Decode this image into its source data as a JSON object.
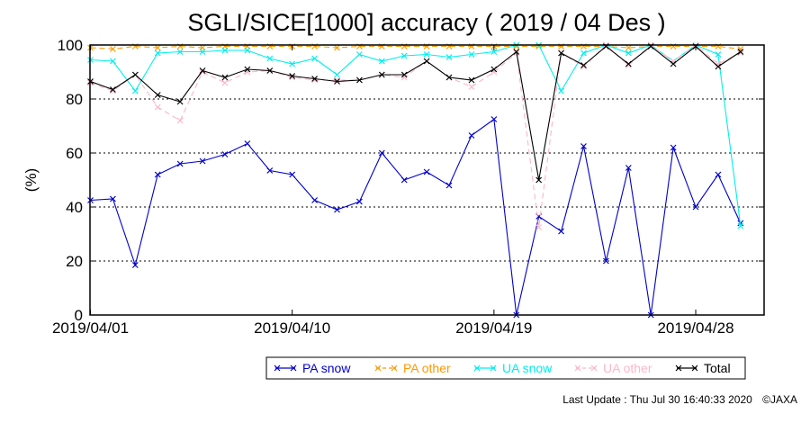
{
  "chart_data": {
    "type": "line",
    "title": "SGLI/SICE[1000] accuracy ( 2019 / 04 Des )",
    "ylabel": "(%)",
    "xlabel": "",
    "ylim": [
      0,
      100
    ],
    "xlim": [
      1,
      31
    ],
    "yticks": [
      0,
      20,
      40,
      60,
      80,
      100
    ],
    "xticks": [
      {
        "x": 1,
        "label": "2019/04/01"
      },
      {
        "x": 10,
        "label": "2019/04/10"
      },
      {
        "x": 19,
        "label": "2019/04/19"
      },
      {
        "x": 28,
        "label": "2019/04/28"
      }
    ],
    "grid": "horizontal dotted",
    "legend_position": "bottom",
    "series": [
      {
        "name": "PA snow",
        "color": "#0000cc",
        "dash": "",
        "x": [
          1,
          2,
          3,
          4,
          5,
          6,
          7,
          8,
          9,
          10,
          11,
          12,
          13,
          14,
          15,
          16,
          17,
          18,
          19,
          20,
          21,
          22,
          23,
          24,
          25,
          26,
          27,
          28,
          29,
          30
        ],
        "y": [
          42.5,
          43,
          18.5,
          52,
          56,
          57,
          59.5,
          63.5,
          53.5,
          52,
          42.5,
          39,
          42,
          60,
          50,
          53,
          48,
          66.5,
          72.5,
          0,
          36.5,
          31,
          62.5,
          20,
          54.5,
          0,
          62,
          40,
          52,
          34
        ]
      },
      {
        "name": "PA other",
        "color": "#ff9900",
        "dash": "6,4",
        "x": [
          1,
          2,
          3,
          4,
          5,
          6,
          7,
          8,
          9,
          10,
          11,
          12,
          13,
          14,
          15,
          16,
          17,
          18,
          19,
          20,
          21,
          22,
          23,
          24,
          25,
          26,
          27,
          28,
          29,
          30
        ],
        "y": [
          99,
          98.5,
          99.5,
          99,
          99.5,
          99,
          99.5,
          99.5,
          99.5,
          99.5,
          99.5,
          99,
          99.5,
          99.5,
          99.5,
          99.5,
          99.5,
          99.5,
          99.5,
          99.5,
          99.5,
          99.5,
          99.5,
          99.5,
          99,
          99.5,
          99.5,
          99.5,
          99.5,
          98.5
        ]
      },
      {
        "name": "UA snow",
        "color": "#00eeee",
        "dash": "",
        "x": [
          1,
          2,
          3,
          4,
          5,
          6,
          7,
          8,
          9,
          10,
          11,
          12,
          13,
          14,
          15,
          16,
          17,
          18,
          19,
          20,
          21,
          22,
          23,
          24,
          25,
          26,
          27,
          28,
          29,
          30
        ],
        "y": [
          94.5,
          94,
          83,
          97,
          97.5,
          97.5,
          98,
          98,
          95,
          93,
          95,
          89,
          96.5,
          94,
          96,
          96.5,
          95.5,
          96.5,
          97.5,
          100,
          100,
          83,
          97,
          100,
          97,
          100,
          94,
          100,
          96.5,
          33
        ]
      },
      {
        "name": "UA other",
        "color": "#ffb6c8",
        "dash": "6,4",
        "x": [
          1,
          2,
          3,
          4,
          5,
          6,
          7,
          8,
          9,
          10,
          11,
          12,
          13,
          14,
          15,
          16,
          17,
          18,
          19,
          20,
          21,
          22,
          23,
          24,
          25,
          26,
          27,
          28,
          29,
          30
        ],
        "y": [
          86,
          83,
          89,
          77,
          72,
          90,
          86,
          90,
          90.5,
          88,
          87,
          87,
          87,
          89,
          88,
          94,
          88,
          84.5,
          90,
          97,
          32.5,
          97,
          92,
          100,
          92.5,
          100,
          94,
          100,
          93,
          97
        ]
      },
      {
        "name": "Total",
        "color": "#000000",
        "dash": "",
        "x": [
          1,
          2,
          3,
          4,
          5,
          6,
          7,
          8,
          9,
          10,
          11,
          12,
          13,
          14,
          15,
          16,
          17,
          18,
          19,
          20,
          21,
          22,
          23,
          24,
          25,
          26,
          27,
          28,
          29,
          30
        ],
        "y": [
          86.5,
          83.5,
          89,
          81.5,
          79,
          90.5,
          88,
          91,
          90.5,
          88.5,
          87.5,
          86.5,
          87,
          89,
          89,
          94,
          88,
          87,
          91,
          97.5,
          50,
          97,
          92.5,
          99.5,
          93,
          99.5,
          93,
          99.5,
          92,
          97.5
        ]
      }
    ]
  },
  "footer": {
    "last_update": "Last Update : Thu Jul 30 16:40:33 2020",
    "copyright": "©JAXA"
  }
}
